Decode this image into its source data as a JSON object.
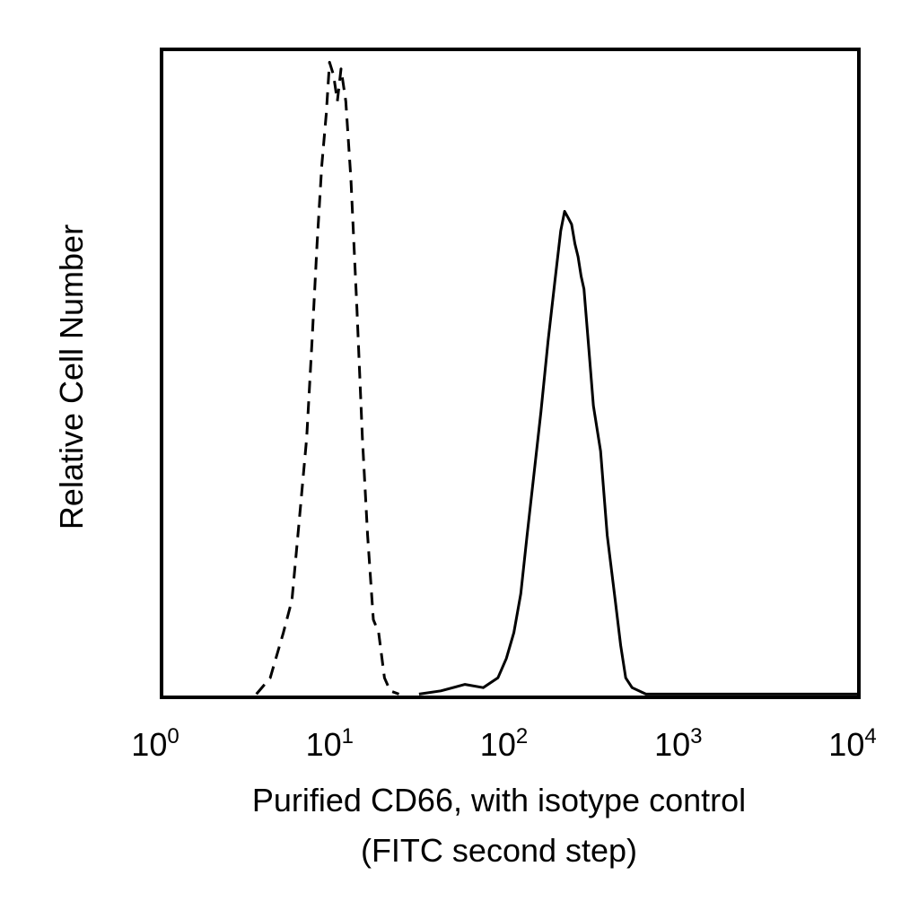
{
  "chart_data": {
    "type": "line",
    "title": "",
    "xlabel": "Purified CD66, with isotype control",
    "xlabel_line2": "(FITC second step)",
    "ylabel": "Relative Cell Number",
    "x_scale": "log",
    "xlim": [
      1,
      10000
    ],
    "ylim": [
      0,
      100
    ],
    "grid": false,
    "legend": "none",
    "x_ticks": [
      {
        "base": "10",
        "exp": "0",
        "value": 1
      },
      {
        "base": "10",
        "exp": "1",
        "value": 10
      },
      {
        "base": "10",
        "exp": "2",
        "value": 100
      },
      {
        "base": "10",
        "exp": "3",
        "value": 1000
      },
      {
        "base": "10",
        "exp": "4",
        "value": 10000
      }
    ],
    "series": [
      {
        "style": "dashed",
        "color": "#000000",
        "x": [
          3.5,
          4.2,
          5.0,
          5.6,
          6.2,
          6.8,
          7.3,
          7.8,
          8.3,
          8.8,
          9.2,
          9.7,
          10.2,
          10.7,
          11.4,
          12.2,
          13.2,
          14.2,
          15.2,
          16.4,
          17.6,
          19.0,
          20.5,
          23
        ],
        "values": [
          0.5,
          3,
          10,
          15,
          28,
          40,
          55,
          70,
          82,
          90,
          98,
          96,
          92,
          97,
          92,
          80,
          60,
          40,
          25,
          12,
          10,
          3,
          1,
          0.5
        ]
      },
      {
        "style": "solid",
        "color": "#000000",
        "x": [
          30,
          40,
          55,
          70,
          85,
          95,
          105,
          115,
          125,
          135,
          150,
          165,
          180,
          195,
          205,
          215,
          225,
          235,
          245,
          255,
          265,
          280,
          300,
          330,
          360,
          400,
          430,
          460,
          500,
          600,
          800,
          1200,
          2000,
          3500,
          6000,
          10000
        ],
        "values": [
          0.5,
          1,
          2,
          1.5,
          3,
          6,
          10,
          16,
          25,
          33,
          44,
          55,
          64,
          72,
          75,
          74,
          73,
          70,
          68,
          65,
          63,
          55,
          45,
          38,
          25,
          15,
          8,
          3,
          1.5,
          0.5,
          0.5,
          0.5,
          0.5,
          0.5,
          0.5,
          0.5
        ]
      }
    ]
  }
}
